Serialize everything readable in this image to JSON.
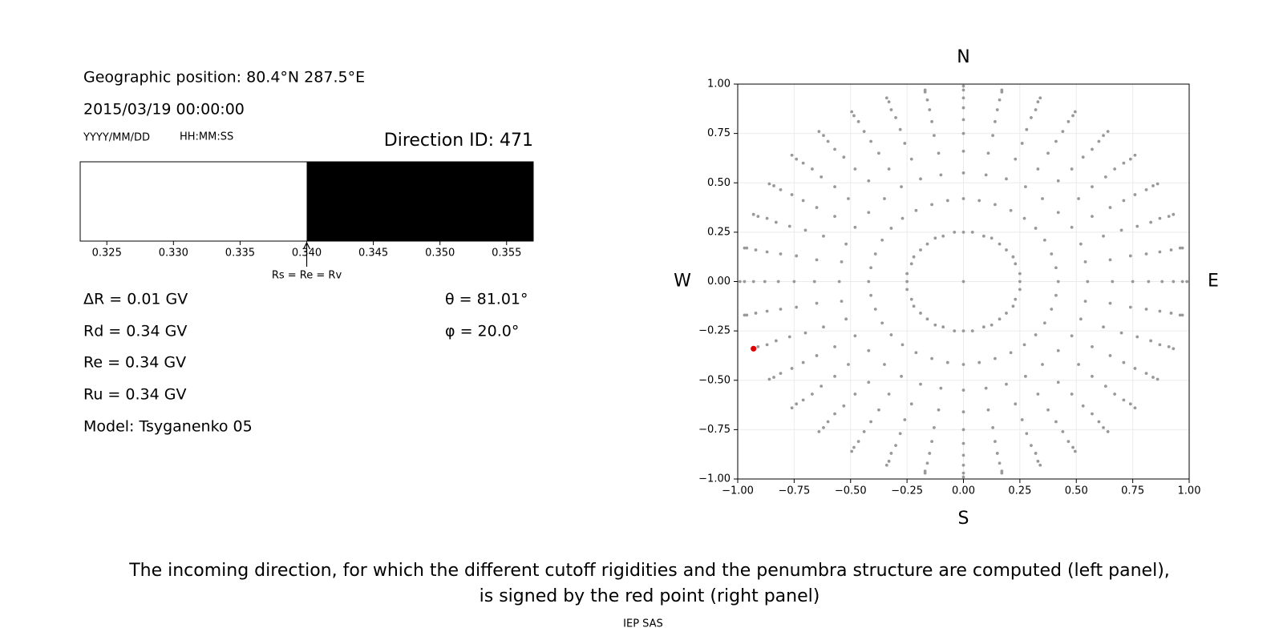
{
  "info": {
    "position": "Geographic position: 80.4°N 287.5°E",
    "datetime": "2015/03/19 00:00:00",
    "date_format": "YYYY/MM/DD",
    "time_format": "HH:MM:SS",
    "direction_id": "Direction ID: 471",
    "delta_r": "ΔR = 0.01 GV",
    "rd": "Rd = 0.34 GV",
    "re": "Re = 0.34 GV",
    "ru": "Ru = 0.34 GV",
    "model": "Model: Tsyganenko 05",
    "theta": "θ = 81.01°",
    "phi": "φ = 20.0°"
  },
  "chart_data": [
    {
      "type": "band",
      "xlim": [
        0.323,
        0.357
      ],
      "xticks": [
        0.325,
        {
          "value": 0.33,
          "label": "0.330"
        },
        0.335,
        {
          "value": 0.34,
          "label": "0.340"
        },
        0.345,
        {
          "value": 0.35,
          "label": "0.350"
        },
        0.355
      ],
      "bands": [
        {
          "start": 0.323,
          "end": 0.34,
          "color": "#ffffff"
        },
        {
          "start": 0.34,
          "end": 0.357,
          "color": "#000000"
        }
      ],
      "annotation": {
        "text": "Rs = Re = Rv",
        "x": 0.34
      }
    },
    {
      "type": "scatter",
      "xlim": [
        -1,
        1
      ],
      "ylim": [
        -1,
        1
      ],
      "grid": true,
      "xticks": [
        {
          "value": -1,
          "label": "−1.00"
        },
        {
          "value": -0.75,
          "label": "−0.75"
        },
        {
          "value": -0.5,
          "label": "−0.50"
        },
        {
          "value": -0.25,
          "label": "−0.25"
        },
        {
          "value": 0,
          "label": "0.00"
        },
        {
          "value": 0.25,
          "label": "0.25"
        },
        {
          "value": 0.5,
          "label": "0.50"
        },
        {
          "value": 0.75,
          "label": "0.75"
        },
        {
          "value": 1,
          "label": "1.00"
        }
      ],
      "yticks": [
        {
          "value": -1,
          "label": "−1.00"
        },
        {
          "value": -0.75,
          "label": "−0.75"
        },
        {
          "value": -0.5,
          "label": "−0.50"
        },
        {
          "value": -0.25,
          "label": "−0.25"
        },
        {
          "value": 0,
          "label": "0.00"
        },
        {
          "value": 0.25,
          "label": "0.25"
        },
        {
          "value": 0.5,
          "label": "0.50"
        },
        {
          "value": 0.75,
          "label": "0.75"
        },
        {
          "value": 1,
          "label": "1.00"
        }
      ],
      "compass": {
        "north": "N",
        "south": "S",
        "west": "W",
        "east": "E"
      },
      "series": [
        {
          "color": "#999999",
          "x": [
            0.25,
            0.42,
            0.55,
            0.66,
            0.75,
            0.82,
            0.88,
            0.93,
            0.97,
            0.99,
            0.25,
            0.41,
            0.54,
            0.65,
            0.74,
            0.81,
            0.87,
            0.92,
            0.96,
            0.97,
            0.23,
            0.39,
            0.52,
            0.62,
            0.7,
            0.77,
            0.83,
            0.87,
            0.91,
            0.93,
            0.22,
            0.36,
            0.48,
            0.57,
            0.65,
            0.71,
            0.76,
            0.81,
            0.84,
            0.86,
            0.19,
            0.32,
            0.42,
            0.51,
            0.57,
            0.63,
            0.67,
            0.71,
            0.74,
            0.76,
            0.16,
            0.27,
            0.35,
            0.42,
            0.48,
            0.53,
            0.57,
            0.6,
            0.62,
            0.64,
            0.125,
            0.21,
            0.275,
            0.33,
            0.375,
            0.41,
            0.44,
            0.465,
            0.485,
            0.495,
            0.09,
            0.14,
            0.19,
            0.23,
            0.26,
            0.28,
            0.3,
            0.32,
            0.33,
            0.34,
            0.04,
            0.07,
            0.1,
            0.11,
            0.13,
            0.14,
            0.15,
            0.16,
            0.17,
            0.17,
            0,
            0,
            0,
            0,
            0,
            0,
            0,
            0,
            0,
            0,
            -0.04,
            -0.07,
            -0.1,
            -0.11,
            -0.13,
            -0.14,
            -0.15,
            -0.16,
            -0.17,
            -0.17,
            -0.09,
            -0.14,
            -0.19,
            -0.23,
            -0.26,
            -0.28,
            -0.3,
            -0.32,
            -0.33,
            -0.34,
            -0.125,
            -0.21,
            -0.275,
            -0.33,
            -0.375,
            -0.41,
            -0.44,
            -0.465,
            -0.485,
            -0.495,
            -0.16,
            -0.27,
            -0.35,
            -0.42,
            -0.48,
            -0.53,
            -0.57,
            -0.6,
            -0.62,
            -0.64,
            -0.19,
            -0.32,
            -0.42,
            -0.51,
            -0.57,
            -0.63,
            -0.67,
            -0.71,
            -0.74,
            -0.76,
            -0.22,
            -0.36,
            -0.48,
            -0.57,
            -0.65,
            -0.71,
            -0.76,
            -0.81,
            -0.84,
            -0.86,
            -0.23,
            -0.39,
            -0.52,
            -0.62,
            -0.7,
            -0.77,
            -0.83,
            -0.87,
            -0.91,
            -0.93,
            -0.25,
            -0.41,
            -0.54,
            -0.65,
            -0.74,
            -0.81,
            -0.87,
            -0.92,
            -0.96,
            -0.97,
            -0.25,
            -0.42,
            -0.55,
            -0.66,
            -0.75,
            -0.82,
            -0.88,
            -0.93,
            -0.97,
            -0.99,
            -0.25,
            -0.41,
            -0.54,
            -0.65,
            -0.74,
            -0.81,
            -0.87,
            -0.92,
            -0.96,
            -0.97,
            -0.23,
            -0.39,
            -0.52,
            -0.62,
            -0.7,
            -0.77,
            -0.83,
            -0.87,
            -0.91,
            -0.93,
            -0.22,
            -0.36,
            -0.48,
            -0.57,
            -0.65,
            -0.71,
            -0.76,
            -0.81,
            -0.84,
            -0.86,
            -0.19,
            -0.32,
            -0.42,
            -0.51,
            -0.57,
            -0.63,
            -0.67,
            -0.71,
            -0.74,
            -0.76,
            -0.16,
            -0.27,
            -0.35,
            -0.42,
            -0.48,
            -0.53,
            -0.57,
            -0.6,
            -0.62,
            -0.64,
            -0.125,
            -0.21,
            -0.275,
            -0.33,
            -0.375,
            -0.41,
            -0.44,
            -0.465,
            -0.485,
            -0.495,
            -0.09,
            -0.14,
            -0.19,
            -0.23,
            -0.26,
            -0.28,
            -0.3,
            -0.32,
            -0.33,
            -0.34,
            -0.04,
            -0.07,
            -0.1,
            -0.11,
            -0.13,
            -0.14,
            -0.15,
            -0.16,
            -0.17,
            -0.17,
            0,
            0,
            0,
            0,
            0,
            0,
            0,
            0,
            0,
            0,
            0.04,
            0.07,
            0.1,
            0.11,
            0.13,
            0.14,
            0.15,
            0.16,
            0.17,
            0.17,
            0.09,
            0.14,
            0.19,
            0.23,
            0.26,
            0.28,
            0.3,
            0.32,
            0.33,
            0.34,
            0.125,
            0.21,
            0.275,
            0.33,
            0.375,
            0.41,
            0.44,
            0.465,
            0.485,
            0.495,
            0.16,
            0.27,
            0.35,
            0.42,
            0.48,
            0.53,
            0.57,
            0.6,
            0.62,
            0.64,
            0.19,
            0.32,
            0.42,
            0.51,
            0.57,
            0.63,
            0.67,
            0.71,
            0.74,
            0.76,
            0.22,
            0.36,
            0.48,
            0.57,
            0.65,
            0.71,
            0.76,
            0.81,
            0.84,
            0.86,
            0.23,
            0.39,
            0.52,
            0.62,
            0.7,
            0.77,
            0.83,
            0.87,
            0.91,
            0.93,
            0.25,
            0.41,
            0.54,
            0.65,
            0.74,
            0.81,
            0.87,
            0.92,
            0.96,
            0.97,
            0
          ],
          "y": [
            0,
            0,
            0,
            0,
            0,
            0,
            0,
            0,
            0,
            0,
            0.04,
            0.07,
            0.1,
            0.11,
            0.13,
            0.14,
            0.15,
            0.16,
            0.17,
            0.17,
            0.09,
            0.14,
            0.19,
            0.23,
            0.26,
            0.28,
            0.3,
            0.32,
            0.33,
            0.34,
            0.125,
            0.21,
            0.275,
            0.33,
            0.375,
            0.41,
            0.44,
            0.465,
            0.485,
            0.495,
            0.16,
            0.27,
            0.35,
            0.42,
            0.48,
            0.53,
            0.57,
            0.6,
            0.62,
            0.64,
            0.19,
            0.32,
            0.42,
            0.51,
            0.57,
            0.63,
            0.67,
            0.71,
            0.74,
            0.76,
            0.22,
            0.36,
            0.48,
            0.57,
            0.65,
            0.71,
            0.76,
            0.81,
            0.84,
            0.86,
            0.23,
            0.39,
            0.52,
            0.62,
            0.7,
            0.77,
            0.83,
            0.87,
            0.91,
            0.93,
            0.25,
            0.41,
            0.54,
            0.65,
            0.74,
            0.81,
            0.87,
            0.92,
            0.96,
            0.97,
            0.25,
            0.42,
            0.55,
            0.66,
            0.75,
            0.82,
            0.88,
            0.93,
            0.97,
            0.99,
            0.25,
            0.41,
            0.54,
            0.65,
            0.74,
            0.81,
            0.87,
            0.92,
            0.96,
            0.97,
            0.23,
            0.39,
            0.52,
            0.62,
            0.7,
            0.77,
            0.83,
            0.87,
            0.91,
            0.93,
            0.22,
            0.36,
            0.48,
            0.57,
            0.65,
            0.71,
            0.76,
            0.81,
            0.84,
            0.86,
            0.19,
            0.32,
            0.42,
            0.51,
            0.57,
            0.63,
            0.67,
            0.71,
            0.74,
            0.76,
            0.16,
            0.27,
            0.35,
            0.42,
            0.48,
            0.53,
            0.57,
            0.6,
            0.62,
            0.64,
            0.125,
            0.21,
            0.275,
            0.33,
            0.375,
            0.41,
            0.44,
            0.465,
            0.485,
            0.495,
            0.09,
            0.14,
            0.19,
            0.23,
            0.26,
            0.28,
            0.3,
            0.32,
            0.33,
            0.34,
            0.04,
            0.07,
            0.1,
            0.11,
            0.13,
            0.14,
            0.15,
            0.16,
            0.17,
            0.17,
            0,
            0,
            0,
            0,
            0,
            0,
            0,
            0,
            0,
            0,
            -0.04,
            -0.07,
            -0.1,
            -0.11,
            -0.13,
            -0.14,
            -0.15,
            -0.16,
            -0.17,
            -0.17,
            -0.09,
            -0.14,
            -0.19,
            -0.23,
            -0.26,
            -0.28,
            -0.3,
            -0.32,
            -0.33,
            -0.34,
            -0.125,
            -0.21,
            -0.275,
            -0.33,
            -0.375,
            -0.41,
            -0.44,
            -0.465,
            -0.485,
            -0.495,
            -0.16,
            -0.27,
            -0.35,
            -0.42,
            -0.48,
            -0.53,
            -0.57,
            -0.6,
            -0.62,
            -0.64,
            -0.19,
            -0.32,
            -0.42,
            -0.51,
            -0.57,
            -0.63,
            -0.67,
            -0.71,
            -0.74,
            -0.76,
            -0.22,
            -0.36,
            -0.48,
            -0.57,
            -0.65,
            -0.71,
            -0.76,
            -0.81,
            -0.84,
            -0.86,
            -0.23,
            -0.39,
            -0.52,
            -0.62,
            -0.7,
            -0.77,
            -0.83,
            -0.87,
            -0.91,
            -0.93,
            -0.25,
            -0.41,
            -0.54,
            -0.65,
            -0.74,
            -0.81,
            -0.87,
            -0.92,
            -0.96,
            -0.97,
            -0.25,
            -0.42,
            -0.55,
            -0.66,
            -0.75,
            -0.82,
            -0.88,
            -0.93,
            -0.97,
            -0.99,
            -0.25,
            -0.41,
            -0.54,
            -0.65,
            -0.74,
            -0.81,
            -0.87,
            -0.92,
            -0.96,
            -0.97,
            -0.23,
            -0.39,
            -0.52,
            -0.62,
            -0.7,
            -0.77,
            -0.83,
            -0.87,
            -0.91,
            -0.93,
            -0.22,
            -0.36,
            -0.48,
            -0.57,
            -0.65,
            -0.71,
            -0.76,
            -0.81,
            -0.84,
            -0.86,
            -0.19,
            -0.32,
            -0.42,
            -0.51,
            -0.57,
            -0.63,
            -0.67,
            -0.71,
            -0.74,
            -0.76,
            -0.16,
            -0.27,
            -0.35,
            -0.42,
            -0.48,
            -0.53,
            -0.57,
            -0.6,
            -0.62,
            -0.64,
            -0.125,
            -0.21,
            -0.275,
            -0.33,
            -0.375,
            -0.41,
            -0.44,
            -0.465,
            -0.485,
            -0.495,
            -0.09,
            -0.14,
            -0.19,
            -0.23,
            -0.26,
            -0.28,
            -0.3,
            -0.32,
            -0.33,
            -0.34,
            -0.04,
            -0.07,
            -0.1,
            -0.11,
            -0.13,
            -0.14,
            -0.15,
            -0.16,
            -0.17,
            -0.17,
            0
          ]
        },
        {
          "color": "#e00000",
          "x": [
            -0.93
          ],
          "y": [
            -0.34
          ]
        }
      ]
    }
  ],
  "caption": [
    "The incoming direction, for which the different cutoff rigidities and the penumbra structure are computed (left panel),",
    "is signed by the red point (right panel)"
  ],
  "footer": "IEP SAS"
}
